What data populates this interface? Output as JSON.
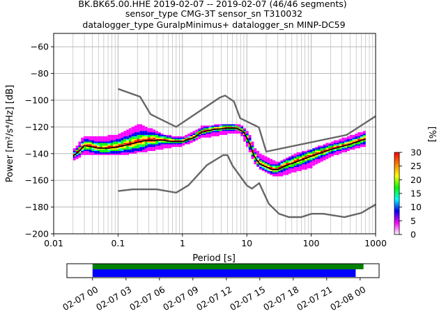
{
  "chart_data": [
    {
      "type": "heatmap",
      "title_lines": [
        "BK.BK65.00.HHE   2019-02-07 -- 2019-02-07  (46/46 segments)",
        "sensor_type CMG-3T sensor_sn T310032",
        "datalogger_type GuralpMinimus+ datalogger_sn MINP-DC59"
      ],
      "xlabel": "Period [s]",
      "ylabel": "Power [m²/s⁴/Hz] [dB]",
      "x_scale": "log",
      "xlim": [
        0.01,
        1000
      ],
      "ylim": [
        -200,
        -50
      ],
      "x_ticks": [
        {
          "value": 0.01,
          "label": "0.01"
        },
        {
          "value": 0.1,
          "label": "0.1"
        },
        {
          "value": 1,
          "label": "1"
        },
        {
          "value": 10,
          "label": "10"
        },
        {
          "value": 100,
          "label": "100"
        },
        {
          "value": 1000,
          "label": "1000"
        }
      ],
      "y_ticks": [
        {
          "value": -60,
          "label": "−60"
        },
        {
          "value": -80,
          "label": "−80"
        },
        {
          "value": -100,
          "label": "−100"
        },
        {
          "value": -120,
          "label": "−120"
        },
        {
          "value": -140,
          "label": "−140"
        },
        {
          "value": -160,
          "label": "−160"
        },
        {
          "value": -180,
          "label": "−180"
        },
        {
          "value": -200,
          "label": "−200"
        }
      ],
      "grid": true,
      "colorbar": {
        "label": "[%]",
        "range": [
          0,
          30
        ],
        "ticks": [
          {
            "value": 0,
            "label": "0"
          },
          {
            "value": 5,
            "label": "5"
          },
          {
            "value": 10,
            "label": "10"
          },
          {
            "value": 15,
            "label": "15"
          },
          {
            "value": 20,
            "label": "20"
          },
          {
            "value": 25,
            "label": "25"
          },
          {
            "value": 30,
            "label": "30"
          }
        ],
        "colors": [
          "#ffffff",
          "#ff00ff",
          "#0000ff",
          "#00ffff",
          "#00ff00",
          "#ffff00",
          "#ff8000",
          "#ff0000"
        ]
      },
      "high_noise_model": [
        [
          0.1,
          -91.5
        ],
        [
          0.22,
          -97.4
        ],
        [
          0.32,
          -110.5
        ],
        [
          0.8,
          -120
        ],
        [
          3.8,
          -98
        ],
        [
          4.6,
          -96.5
        ],
        [
          6.3,
          -101
        ],
        [
          7.9,
          -113.5
        ],
        [
          15.4,
          -120.3
        ],
        [
          20,
          -138.5
        ],
        [
          354.8,
          -126
        ],
        [
          1000,
          -112
        ]
      ],
      "low_noise_model": [
        [
          0.1,
          -168
        ],
        [
          0.17,
          -166.7
        ],
        [
          0.4,
          -166.7
        ],
        [
          0.8,
          -169.2
        ],
        [
          1.24,
          -163.7
        ],
        [
          2.4,
          -148.6
        ],
        [
          4.3,
          -141.1
        ],
        [
          5,
          -141.1
        ],
        [
          6,
          -149
        ],
        [
          10,
          -163.8
        ],
        [
          12,
          -166.2
        ],
        [
          15.6,
          -162.1
        ],
        [
          21.9,
          -177.5
        ],
        [
          31.6,
          -185
        ],
        [
          45,
          -187.5
        ],
        [
          70,
          -187.5
        ],
        [
          101,
          -185
        ],
        [
          154,
          -185
        ],
        [
          328,
          -187.5
        ],
        [
          600,
          -184.4
        ],
        [
          1000,
          -178
        ]
      ],
      "mean_psd": [
        [
          0.02,
          -142
        ],
        [
          0.025,
          -138
        ],
        [
          0.03,
          -134
        ],
        [
          0.04,
          -135
        ],
        [
          0.05,
          -136
        ],
        [
          0.07,
          -136
        ],
        [
          0.1,
          -135
        ],
        [
          0.15,
          -133
        ],
        [
          0.22,
          -131
        ],
        [
          0.3,
          -130
        ],
        [
          0.5,
          -130
        ],
        [
          0.7,
          -131
        ],
        [
          1,
          -131
        ],
        [
          1.5,
          -128
        ],
        [
          2,
          -124
        ],
        [
          3,
          -122
        ],
        [
          5,
          -121
        ],
        [
          7,
          -121
        ],
        [
          9,
          -124
        ],
        [
          11,
          -132
        ],
        [
          13,
          -142
        ],
        [
          16,
          -148
        ],
        [
          20,
          -150
        ],
        [
          25,
          -152
        ],
        [
          30,
          -152
        ],
        [
          40,
          -149
        ],
        [
          60,
          -146
        ],
        [
          100,
          -142
        ],
        [
          200,
          -137
        ],
        [
          400,
          -133
        ],
        [
          700,
          -129
        ]
      ],
      "spread_upper": [
        [
          0.02,
          -139
        ],
        [
          0.03,
          -128
        ],
        [
          0.05,
          -129
        ],
        [
          0.1,
          -127
        ],
        [
          0.15,
          -123
        ],
        [
          0.22,
          -119
        ],
        [
          0.3,
          -122
        ],
        [
          0.5,
          -127
        ],
        [
          1,
          -129
        ],
        [
          2,
          -121
        ],
        [
          5,
          -119
        ],
        [
          8,
          -119
        ],
        [
          11,
          -127
        ],
        [
          14,
          -139
        ],
        [
          20,
          -144
        ],
        [
          30,
          -148
        ],
        [
          60,
          -141
        ],
        [
          100,
          -138
        ],
        [
          200,
          -133
        ],
        [
          400,
          -128
        ],
        [
          700,
          -124
        ]
      ],
      "spread_lower": [
        [
          0.02,
          -145
        ],
        [
          0.03,
          -140
        ],
        [
          0.05,
          -141
        ],
        [
          0.1,
          -141
        ],
        [
          0.2,
          -139
        ],
        [
          0.4,
          -137
        ],
        [
          0.7,
          -135
        ],
        [
          1,
          -134
        ],
        [
          2,
          -128
        ],
        [
          5,
          -125
        ],
        [
          8,
          -124
        ],
        [
          11,
          -138
        ],
        [
          14,
          -149
        ],
        [
          20,
          -154
        ],
        [
          30,
          -157
        ],
        [
          60,
          -153
        ],
        [
          100,
          -150
        ],
        [
          200,
          -142
        ],
        [
          400,
          -137
        ],
        [
          700,
          -134
        ]
      ],
      "coverage": {
        "x_ticks": [
          "02-07 00",
          "02-07 03",
          "02-07 06",
          "02-07 09",
          "02-07 12",
          "02-07 15",
          "02-07 18",
          "02-07 21",
          "02-08 00"
        ],
        "data_available_hours": [
          0,
          24.3
        ],
        "psd_segments_hours": [
          0,
          23.6
        ],
        "xlim_hours": [
          -2.3,
          25.7
        ],
        "data_color": "#008000",
        "segments_color": "#0000ff"
      }
    }
  ]
}
